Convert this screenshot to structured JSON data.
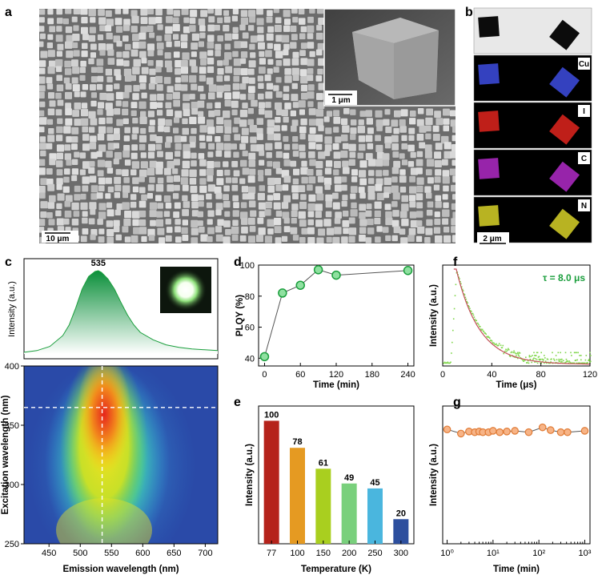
{
  "panels": {
    "a": {
      "label": "a",
      "inset_scale": "1 μm",
      "main_scale": "10 μm",
      "colors": {
        "bg": "#6c6c6c",
        "cube": "#c9c9c9",
        "inset_bg": "#505050"
      }
    },
    "b": {
      "label": "b",
      "maps": [
        {
          "name": "bright-field",
          "label": "",
          "color": "#000000"
        },
        {
          "name": "Cu",
          "label": "Cu",
          "color": "#3d4ce0"
        },
        {
          "name": "I",
          "label": "I",
          "color": "#e0241d"
        },
        {
          "name": "C",
          "label": "C",
          "color": "#b12ac8"
        },
        {
          "name": "N",
          "label": "N",
          "color": "#d8d228"
        }
      ],
      "scale": "2 μm"
    },
    "c": {
      "label": "c"
    },
    "d": {
      "label": "d"
    },
    "e": {
      "label": "e"
    },
    "f": {
      "label": "f"
    },
    "g": {
      "label": "g"
    }
  },
  "chart_data": [
    {
      "id": "c-top",
      "type": "area",
      "title": "",
      "xlabel": "",
      "ylabel": "Intensity (a.u.)",
      "peak_label": "535",
      "xlim": [
        420,
        720
      ],
      "x": [
        420,
        440,
        460,
        480,
        490,
        500,
        510,
        520,
        530,
        535,
        540,
        550,
        560,
        570,
        580,
        590,
        600,
        620,
        640,
        660,
        680,
        700,
        720
      ],
      "y": [
        0.02,
        0.04,
        0.09,
        0.22,
        0.35,
        0.55,
        0.78,
        0.93,
        0.99,
        1.0,
        0.98,
        0.9,
        0.78,
        0.62,
        0.47,
        0.35,
        0.26,
        0.17,
        0.11,
        0.08,
        0.06,
        0.05,
        0.04
      ],
      "color": "#1a9e3c"
    },
    {
      "id": "c-bottom",
      "type": "heatmap",
      "xlabel": "Emission wavelength (nm)",
      "ylabel": "Excitation wavelength (nm)",
      "xlim": [
        410,
        720
      ],
      "ylim": [
        250,
        400
      ],
      "xticks": [
        "450",
        "500",
        "550",
        "600",
        "650",
        "700"
      ],
      "xtick_values": [
        450,
        500,
        550,
        600,
        650,
        700
      ],
      "yticks": [
        "250",
        "300",
        "350",
        "400"
      ],
      "ytick_values": [
        250,
        300,
        350,
        400
      ],
      "guide_x": 535,
      "guide_y": 365
    },
    {
      "id": "d",
      "type": "line",
      "xlabel": "Time (min)",
      "ylabel": "PLQY (%)",
      "xlim": [
        -10,
        250
      ],
      "ylim": [
        35,
        100
      ],
      "xticks": [
        "0",
        "60",
        "120",
        "180",
        "240"
      ],
      "xtick_values": [
        0,
        60,
        120,
        180,
        240
      ],
      "yticks": [
        "40",
        "60",
        "80",
        "100"
      ],
      "ytick_values": [
        40,
        60,
        80,
        100
      ],
      "x": [
        0,
        30,
        60,
        90,
        120,
        240
      ],
      "y": [
        41,
        82,
        87,
        97,
        93.5,
        96.5
      ],
      "color": "#1a9e3c"
    },
    {
      "id": "e",
      "type": "bar",
      "xlabel": "Temperature (K)",
      "ylabel": "Intensity (a.u.)",
      "ylim": [
        0,
        112
      ],
      "categories": [
        "77",
        "100",
        "150",
        "200",
        "250",
        "300"
      ],
      "values": [
        100,
        78,
        61,
        49,
        45,
        20
      ],
      "value_labels": [
        "100",
        "78",
        "61",
        "49",
        "45",
        "20"
      ],
      "colors": [
        "#b5231b",
        "#e59a22",
        "#a9cf1f",
        "#79d07c",
        "#4ab6de",
        "#2d4f9e"
      ]
    },
    {
      "id": "f",
      "type": "scatter",
      "xlabel": "Time (μs)",
      "ylabel": "Intensity (a.u.)",
      "annotation": "τ = 8.0 μs",
      "xlim": [
        0,
        120
      ],
      "xticks": [
        "0",
        "40",
        "80",
        "120"
      ],
      "xtick_values": [
        0,
        40,
        80,
        120
      ],
      "tau": 8.0,
      "color": "#7fd64a",
      "fit_color": "#c4505a"
    },
    {
      "id": "g",
      "type": "line",
      "xlabel": "Time (min)",
      "ylabel": "Intensity (a.u.)",
      "xscale": "log",
      "xlim": [
        0.8,
        1300
      ],
      "ylim": [
        0,
        1
      ],
      "xticks": [
        "10⁰",
        "10¹",
        "10²",
        "10³"
      ],
      "xtick_values": [
        1,
        10,
        100,
        1000
      ],
      "x": [
        1,
        2,
        3,
        4,
        5,
        6,
        8,
        10,
        14,
        20,
        30,
        60,
        120,
        180,
        300,
        420,
        1000
      ],
      "y": [
        0.83,
        0.8,
        0.815,
        0.81,
        0.815,
        0.81,
        0.81,
        0.82,
        0.81,
        0.815,
        0.82,
        0.81,
        0.845,
        0.825,
        0.81,
        0.81,
        0.82
      ],
      "color": "#f0954f"
    }
  ]
}
